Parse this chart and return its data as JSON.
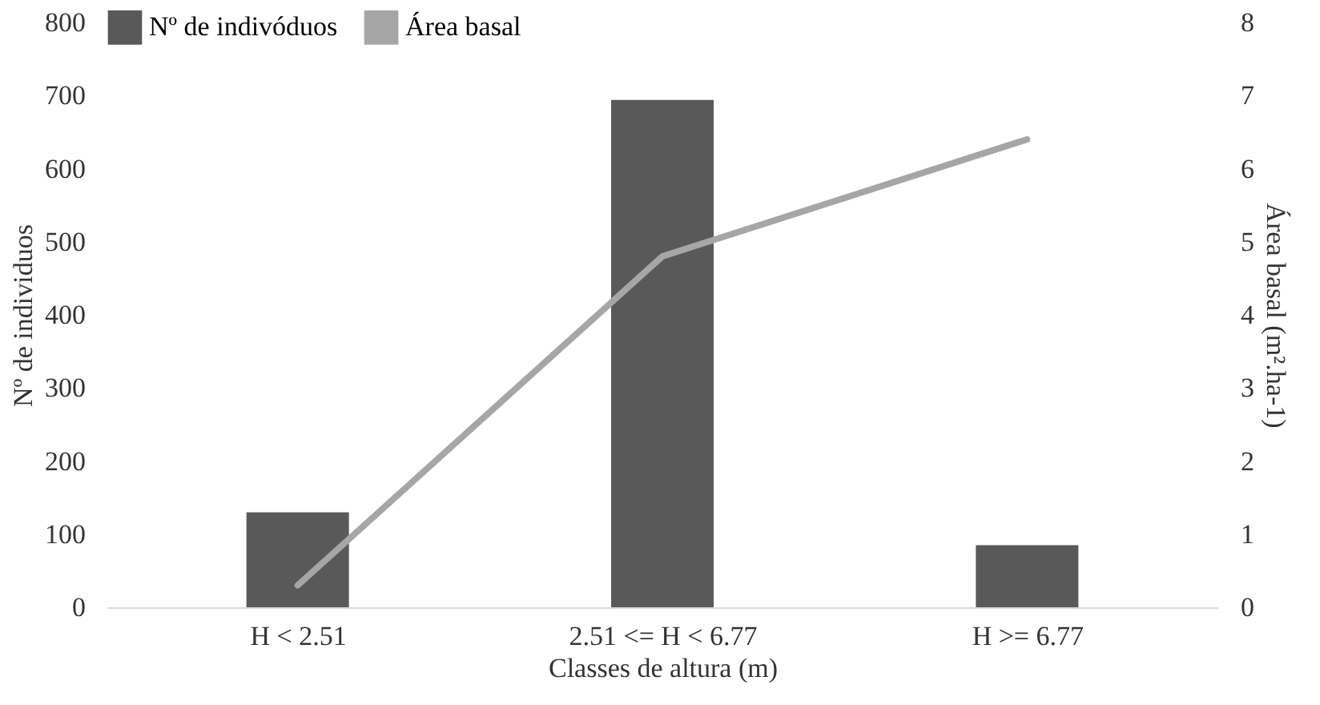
{
  "chart_data": {
    "type": "bar",
    "xlabel": "Classes de altura (m)",
    "ylabel": "Nº de individuos",
    "y2label": "Área basal (m².ha-1)",
    "categories": [
      "H < 2.51",
      "2.51 <= H < 6.77",
      "H >= 6.77"
    ],
    "series": [
      {
        "name": "Nº de indivóduos",
        "color": "#595959",
        "values": [
          130,
          694,
          85
        ]
      },
      {
        "name": "Área basal",
        "type": "line",
        "axis": "y2",
        "color": "#a6a6a6",
        "values": [
          0.3,
          4.8,
          6.4
        ]
      }
    ],
    "ylim": [
      0,
      800
    ],
    "yticks": [
      0,
      100,
      200,
      300,
      400,
      500,
      600,
      700,
      800
    ],
    "y2lim": [
      0,
      8
    ],
    "y2ticks": [
      0,
      1,
      2,
      3,
      4,
      5,
      6,
      7,
      8
    ],
    "legend": "top",
    "grid": false
  }
}
